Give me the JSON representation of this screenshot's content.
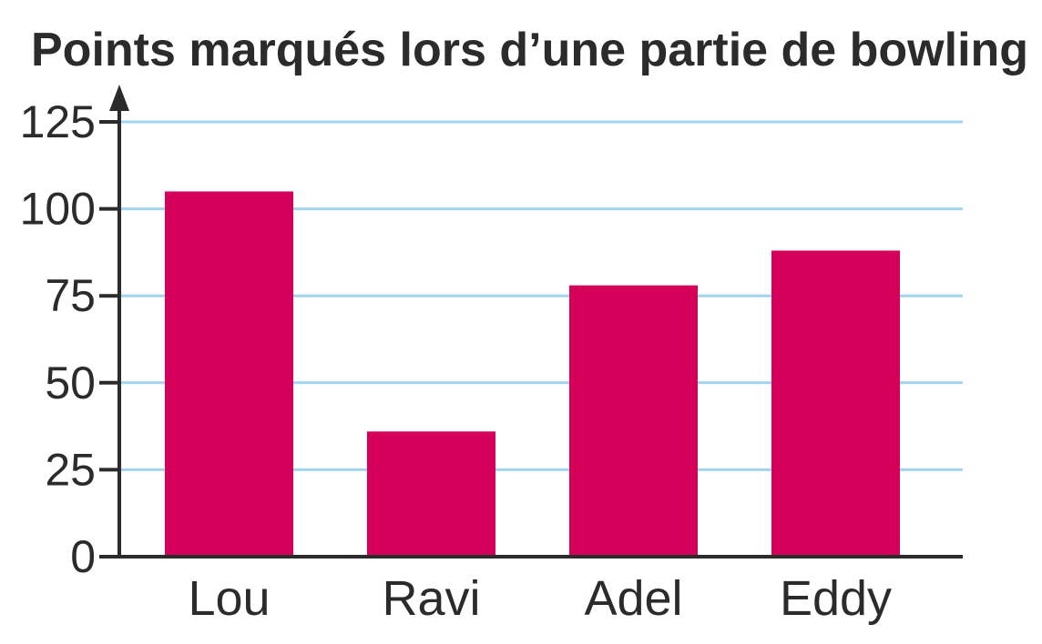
{
  "chart_data": {
    "type": "bar",
    "title": "Points marqués lors d’une partie de bowling",
    "xlabel": "",
    "ylabel": "",
    "categories": [
      "Lou",
      "Ravi",
      "Adel",
      "Eddy"
    ],
    "values": [
      105,
      36,
      78,
      88
    ],
    "ylim": [
      0,
      125
    ],
    "yticks": [
      0,
      25,
      50,
      75,
      100,
      125
    ],
    "ytick_labels": [
      "0",
      "25",
      "50",
      "75",
      "100",
      "125"
    ],
    "grid": true,
    "legend": "none"
  },
  "colors": {
    "bar": "#d5005a",
    "grid": "#9fd3ee",
    "axis": "#2b2b2b",
    "text": "#2b2b2b"
  }
}
